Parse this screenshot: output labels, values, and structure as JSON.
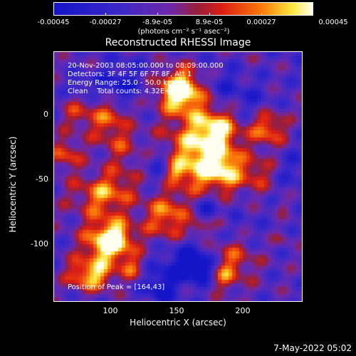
{
  "colorbar": {
    "ticks": [
      "-0.00045",
      "-0.00027",
      "-8.9e-05",
      "8.9e-05",
      "0.00027",
      "0.00045"
    ],
    "units": "(photons cm⁻² s⁻¹ asec⁻²)"
  },
  "title": "Reconstructed RHESSI Image",
  "info": {
    "line1": "20-Nov-2003 08:05:00.000 to 08:09:00.000",
    "line2": "Detectors: 3F 4F 5F 6F 7F 8F, Att 1",
    "line3": "Energy Range: 25.0 - 50.0 keV",
    "line4": "Clean    Total counts: 4.32E+03"
  },
  "peak": "Position of Peak = [164,43]",
  "axes": {
    "xlabel": "Heliocentric X (arcsec)",
    "ylabel": "Heliocentric Y (arcsec)",
    "xticks": [
      "100",
      "150",
      "200"
    ],
    "yticks": [
      "0",
      "-50",
      "-100"
    ]
  },
  "date": "7-May-2022 05:02",
  "colors": {
    "background": "#000000",
    "text": "#ffffff"
  }
}
